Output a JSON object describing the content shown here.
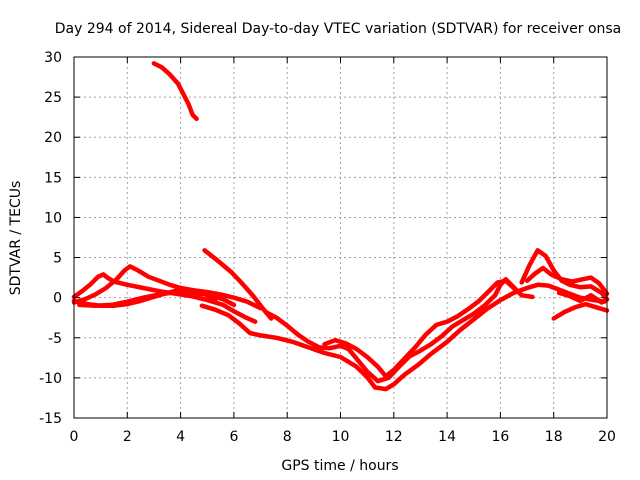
{
  "chart_data": {
    "type": "scatter",
    "title": "Day 294 of 2014, Sidereal Day-to-day VTEC variation (SDTVAR) for receiver onsa",
    "xlabel": "GPS time / hours",
    "ylabel": "SDTVAR / TECUs",
    "xlim": [
      0,
      20
    ],
    "ylim": [
      -15,
      30
    ],
    "xticks": [
      0,
      2,
      4,
      6,
      8,
      10,
      12,
      14,
      16,
      18,
      20
    ],
    "yticks": [
      -15,
      -10,
      -5,
      0,
      5,
      10,
      15,
      20,
      25,
      30
    ],
    "grid": true,
    "series_color": "#ff0000",
    "series": [
      {
        "name": "s1",
        "points": [
          [
            3.0,
            29.2
          ],
          [
            3.3,
            28.7
          ],
          [
            3.6,
            27.8
          ],
          [
            3.9,
            26.7
          ],
          [
            4.1,
            25.4
          ],
          [
            4.3,
            24.1
          ],
          [
            4.45,
            22.8
          ],
          [
            4.6,
            22.3
          ]
        ]
      },
      {
        "name": "s2",
        "points": [
          [
            0,
            0.1
          ],
          [
            0.3,
            0.8
          ],
          [
            0.6,
            1.6
          ],
          [
            0.9,
            2.6
          ],
          [
            1.1,
            2.9
          ],
          [
            1.3,
            2.4
          ],
          [
            1.5,
            2.0
          ],
          [
            2.0,
            1.6
          ],
          [
            2.6,
            1.2
          ],
          [
            3.2,
            0.8
          ],
          [
            3.8,
            0.5
          ],
          [
            4.4,
            0.2
          ],
          [
            5.0,
            -0.3
          ],
          [
            5.6,
            -0.9
          ],
          [
            6.0,
            -1.7
          ],
          [
            6.4,
            -2.4
          ],
          [
            6.8,
            -3.0
          ]
        ]
      },
      {
        "name": "s3",
        "points": [
          [
            0,
            -0.6
          ],
          [
            0.4,
            -0.2
          ],
          [
            0.8,
            0.4
          ],
          [
            1.2,
            1.2
          ],
          [
            1.6,
            2.3
          ],
          [
            1.9,
            3.4
          ],
          [
            2.1,
            3.9
          ],
          [
            2.4,
            3.4
          ],
          [
            2.8,
            2.6
          ],
          [
            3.2,
            2.1
          ],
          [
            3.6,
            1.6
          ],
          [
            4.0,
            1.2
          ],
          [
            4.5,
            0.9
          ],
          [
            5.0,
            0.7
          ],
          [
            5.5,
            0.4
          ],
          [
            6.0,
            0.0
          ],
          [
            6.5,
            -0.5
          ],
          [
            7.0,
            -1.3
          ]
        ]
      },
      {
        "name": "s4",
        "points": [
          [
            0,
            -0.4
          ],
          [
            0.5,
            -0.8
          ],
          [
            1.0,
            -1.0
          ],
          [
            1.5,
            -1.0
          ],
          [
            2.0,
            -0.8
          ],
          [
            2.5,
            -0.4
          ],
          [
            3.0,
            0.1
          ],
          [
            3.5,
            0.6
          ],
          [
            4.0,
            1.0
          ],
          [
            4.5,
            0.9
          ],
          [
            5.0,
            0.3
          ],
          [
            5.3,
            -0.3
          ]
        ]
      },
      {
        "name": "s5",
        "points": [
          [
            0.2,
            -0.9
          ],
          [
            0.8,
            -1.0
          ],
          [
            1.4,
            -0.9
          ],
          [
            2.0,
            -0.5
          ],
          [
            2.6,
            0.0
          ],
          [
            3.2,
            0.4
          ],
          [
            3.8,
            0.7
          ],
          [
            4.4,
            0.6
          ],
          [
            5.0,
            0.4
          ],
          [
            5.6,
            -0.2
          ],
          [
            6.0,
            -0.9
          ]
        ]
      },
      {
        "name": "s6",
        "points": [
          [
            4.9,
            5.9
          ],
          [
            5.4,
            4.6
          ],
          [
            5.9,
            3.2
          ],
          [
            6.3,
            1.8
          ],
          [
            6.7,
            0.3
          ],
          [
            7.1,
            -1.4
          ],
          [
            7.4,
            -2.6
          ]
        ]
      },
      {
        "name": "s7",
        "points": [
          [
            4.8,
            -1.0
          ],
          [
            5.3,
            -1.5
          ],
          [
            5.8,
            -2.2
          ],
          [
            6.2,
            -3.2
          ],
          [
            6.6,
            -4.4
          ],
          [
            7.0,
            -4.7
          ],
          [
            7.6,
            -5.0
          ],
          [
            8.2,
            -5.5
          ],
          [
            8.8,
            -6.2
          ],
          [
            9.4,
            -6.9
          ],
          [
            10.0,
            -7.4
          ],
          [
            10.6,
            -8.6
          ],
          [
            11.0,
            -9.9
          ],
          [
            11.3,
            -11.2
          ],
          [
            11.7,
            -11.4
          ],
          [
            12.0,
            -10.8
          ],
          [
            12.4,
            -9.6
          ],
          [
            12.9,
            -8.4
          ],
          [
            13.4,
            -7.0
          ],
          [
            14.0,
            -5.5
          ],
          [
            14.5,
            -4.0
          ],
          [
            15.0,
            -2.7
          ],
          [
            15.5,
            -1.4
          ],
          [
            16.0,
            -0.3
          ],
          [
            16.5,
            0.6
          ],
          [
            17.0,
            1.2
          ],
          [
            17.4,
            1.6
          ],
          [
            17.8,
            1.5
          ],
          [
            18.2,
            1.0
          ],
          [
            18.6,
            0.5
          ],
          [
            19.0,
            0.0
          ],
          [
            19.5,
            -0.3
          ],
          [
            19.9,
            -0.5
          ]
        ]
      },
      {
        "name": "s8",
        "points": [
          [
            7.2,
            -1.8
          ],
          [
            7.6,
            -2.5
          ],
          [
            8.0,
            -3.5
          ],
          [
            8.4,
            -4.6
          ],
          [
            8.8,
            -5.5
          ],
          [
            9.2,
            -6.2
          ],
          [
            9.6,
            -6.3
          ],
          [
            10.0,
            -6.0
          ],
          [
            10.3,
            -6.4
          ],
          [
            10.6,
            -7.6
          ],
          [
            11.0,
            -9.2
          ],
          [
            11.4,
            -10.4
          ],
          [
            11.8,
            -10.0
          ],
          [
            12.2,
            -8.6
          ],
          [
            12.6,
            -7.3
          ],
          [
            13.0,
            -6.6
          ],
          [
            13.4,
            -5.8
          ],
          [
            13.8,
            -4.8
          ],
          [
            14.2,
            -3.6
          ],
          [
            14.6,
            -2.8
          ],
          [
            15.0,
            -2.0
          ],
          [
            15.4,
            -1.0
          ],
          [
            15.8,
            0.3
          ],
          [
            16.0,
            1.6
          ],
          [
            16.2,
            2.3
          ],
          [
            16.5,
            1.3
          ],
          [
            16.8,
            0.3
          ],
          [
            17.2,
            0.1
          ]
        ]
      },
      {
        "name": "s9",
        "points": [
          [
            9.4,
            -5.8
          ],
          [
            9.8,
            -5.3
          ],
          [
            10.2,
            -5.7
          ],
          [
            10.6,
            -6.4
          ],
          [
            11.0,
            -7.4
          ],
          [
            11.4,
            -8.6
          ],
          [
            11.7,
            -9.8
          ],
          [
            12.0,
            -9.0
          ],
          [
            12.4,
            -7.6
          ],
          [
            12.8,
            -6.2
          ],
          [
            13.2,
            -4.6
          ],
          [
            13.6,
            -3.4
          ],
          [
            14.0,
            -3.0
          ],
          [
            14.4,
            -2.3
          ],
          [
            14.8,
            -1.4
          ],
          [
            15.2,
            -0.4
          ],
          [
            15.6,
            0.9
          ],
          [
            15.9,
            1.9
          ],
          [
            16.2,
            2.1
          ],
          [
            16.6,
            0.9
          ]
        ]
      },
      {
        "name": "s10",
        "points": [
          [
            16.8,
            1.9
          ],
          [
            17.1,
            4.1
          ],
          [
            17.4,
            5.9
          ],
          [
            17.7,
            5.2
          ],
          [
            18.0,
            3.4
          ],
          [
            18.3,
            2.1
          ],
          [
            18.6,
            1.6
          ],
          [
            19.0,
            1.3
          ],
          [
            19.4,
            1.4
          ],
          [
            19.8,
            0.6
          ],
          [
            20.0,
            -0.2
          ]
        ]
      },
      {
        "name": "s11",
        "points": [
          [
            17.0,
            2.1
          ],
          [
            17.3,
            3.0
          ],
          [
            17.6,
            3.7
          ],
          [
            17.9,
            2.9
          ],
          [
            18.3,
            2.3
          ],
          [
            18.7,
            2.0
          ],
          [
            19.1,
            2.3
          ],
          [
            19.4,
            2.5
          ],
          [
            19.7,
            1.8
          ],
          [
            20.0,
            0.5
          ]
        ]
      },
      {
        "name": "s12",
        "points": [
          [
            18.0,
            -2.6
          ],
          [
            18.4,
            -1.8
          ],
          [
            18.8,
            -1.2
          ],
          [
            19.2,
            -0.8
          ],
          [
            19.6,
            -1.2
          ],
          [
            20.0,
            -1.6
          ]
        ]
      },
      {
        "name": "s13",
        "points": [
          [
            18.2,
            0.6
          ],
          [
            18.6,
            0.2
          ],
          [
            19.0,
            -0.4
          ],
          [
            19.4,
            0.3
          ],
          [
            19.8,
            -0.6
          ],
          [
            20.0,
            -0.2
          ]
        ]
      }
    ]
  }
}
